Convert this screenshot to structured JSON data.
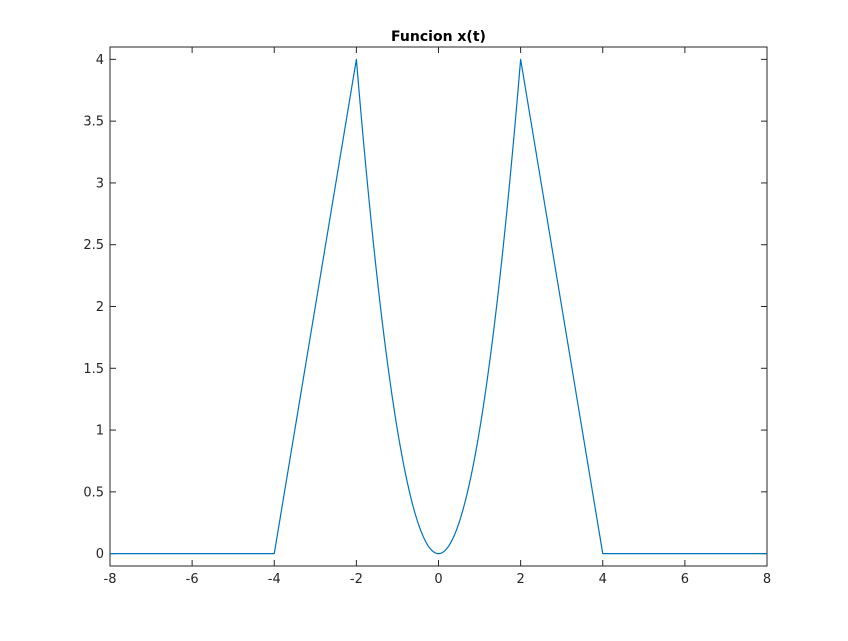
{
  "chart_data": {
    "type": "line",
    "title": "Funcion x(t)",
    "xlabel": "",
    "ylabel": "",
    "xlim": [
      -8,
      8
    ],
    "ylim": [
      -0.1,
      4.1
    ],
    "xticks": [
      -8,
      -6,
      -4,
      -2,
      0,
      2,
      4,
      6,
      8
    ],
    "yticks": [
      0,
      0.5,
      1,
      1.5,
      2,
      2.5,
      3,
      3.5,
      4
    ],
    "xtick_labels": [
      "-8",
      "-6",
      "-4",
      "-2",
      "0",
      "2",
      "4",
      "6",
      "8"
    ],
    "ytick_labels": [
      "0",
      "0.5",
      "1",
      "1.5",
      "2",
      "2.5",
      "3",
      "3.5",
      "4"
    ],
    "grid": false,
    "box": true,
    "line_color": "#0072BD",
    "series": [
      {
        "x": [
          -8,
          -4,
          -2,
          -1.75,
          -1.5,
          -1.25,
          -1,
          -0.75,
          -0.5,
          -0.25,
          0,
          0.25,
          0.5,
          0.75,
          1,
          1.25,
          1.5,
          1.75,
          2,
          4,
          8
        ],
        "y": [
          0,
          0,
          4,
          3.0625,
          2.25,
          1.5625,
          1,
          0.5625,
          0.25,
          0.0625,
          0,
          0.0625,
          0.25,
          0.5625,
          1,
          1.5625,
          2.25,
          3.0625,
          4,
          0,
          0
        ]
      }
    ]
  }
}
